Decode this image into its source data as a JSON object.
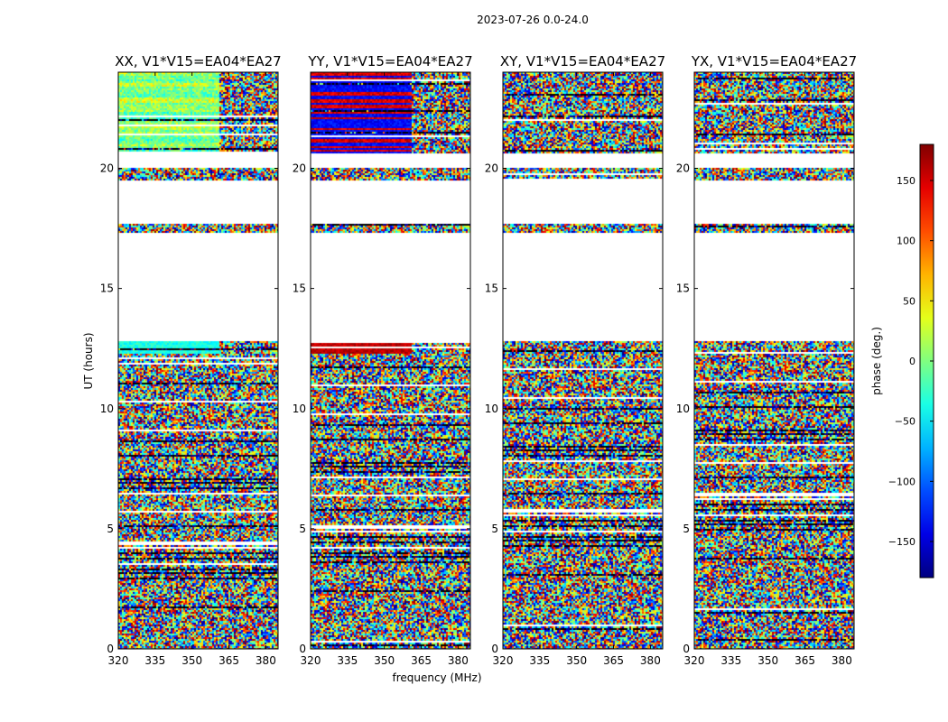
{
  "chart_data": {
    "type": "heatmap",
    "suptitle": "2023-07-26 0.0-24.0",
    "xlabel": "frequency (MHz)",
    "ylabel": "UT (hours)",
    "x_range": [
      320,
      385
    ],
    "y_range": [
      0,
      24
    ],
    "x_ticks": [
      320,
      335,
      350,
      365,
      380
    ],
    "y_ticks": [
      0,
      5,
      10,
      15,
      20
    ],
    "panels": [
      {
        "title": "XX, V1*V15=EA04*EA27",
        "polarization": "XX"
      },
      {
        "title": "YY, V1*V15=EA04*EA27",
        "polarization": "YY"
      },
      {
        "title": "XY, V1*V15=EA04*EA27",
        "polarization": "XY"
      },
      {
        "title": "YX, V1*V15=EA04*EA27",
        "polarization": "YX"
      }
    ],
    "colorbar": {
      "label": "phase (deg.)",
      "range": [
        -180,
        180
      ],
      "ticks": [
        150,
        100,
        50,
        0,
        -50,
        -100,
        -150
      ],
      "tick_labels": [
        "150",
        "100",
        "50",
        "0",
        "−50",
        "−100",
        "−150"
      ],
      "colormap": "jet"
    },
    "data_time_ranges_hours": [
      [
        0.0,
        12.8
      ],
      [
        17.3,
        17.7
      ],
      [
        19.5,
        20.0
      ],
      [
        20.6,
        24.0
      ]
    ],
    "blank_time_ranges_hours": [
      [
        12.8,
        17.3
      ],
      [
        17.7,
        19.5
      ],
      [
        20.0,
        20.6
      ]
    ]
  },
  "colors": {
    "frame": "#000000",
    "background": "#ffffff"
  }
}
